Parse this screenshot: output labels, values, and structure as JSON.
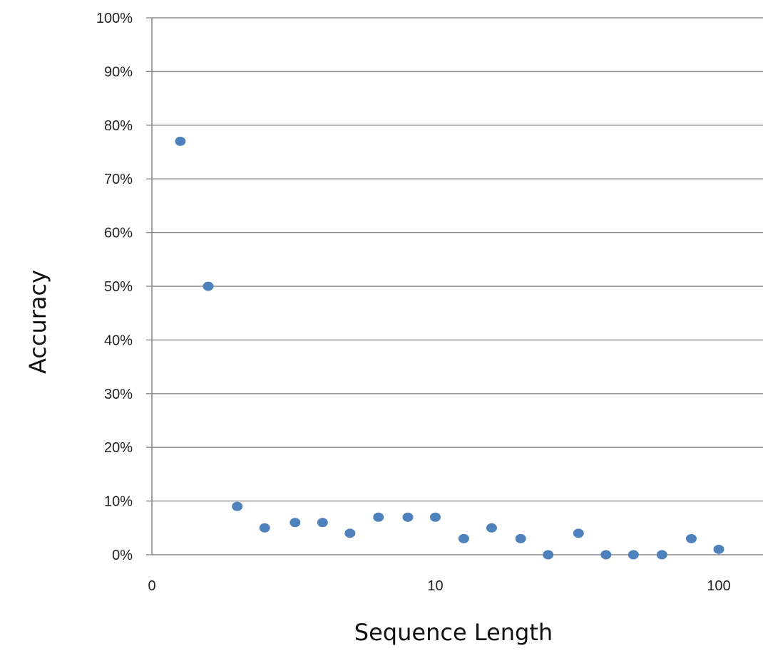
{
  "chart_data": {
    "type": "scatter",
    "title": "",
    "xlabel": "Sequence Length",
    "ylabel": "Accuracy",
    "x_scale": "log",
    "x_tick_labels": [
      "0",
      "10",
      "100"
    ],
    "y_tick_labels": [
      "0%",
      "10%",
      "20%",
      "30%",
      "40%",
      "50%",
      "60%",
      "70%",
      "80%",
      "90%",
      "100%"
    ],
    "ylim": [
      0,
      100
    ],
    "y_unit": "%",
    "grid": "horizontal",
    "legend": "none",
    "marker_color": "#4f81bd",
    "series": [
      {
        "x": [
          1.26,
          1.58,
          2,
          2.5,
          3.2,
          4,
          5,
          6.3,
          8,
          10,
          12.6,
          15.8,
          20,
          25,
          32,
          40,
          50,
          63,
          80,
          100
        ],
        "y": [
          77,
          50,
          9,
          5,
          6,
          6,
          4,
          7,
          7,
          7,
          3,
          5,
          3,
          0,
          4,
          0,
          0,
          0,
          3,
          1
        ]
      }
    ]
  }
}
